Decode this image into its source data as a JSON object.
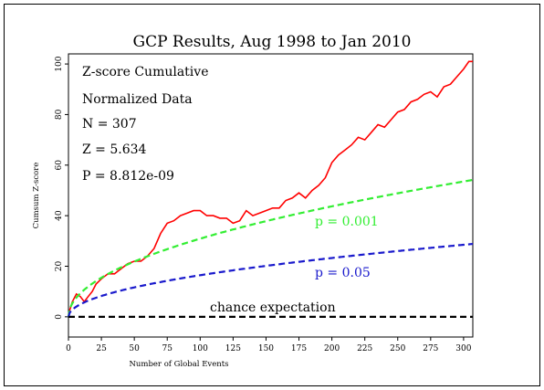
{
  "chart_data": {
    "type": "line",
    "title": "GCP Results, Aug 1998 to Jan 2010",
    "xlabel": "Number of Global Events",
    "ylabel": "Cumsum Z-score",
    "xlim": [
      0,
      307
    ],
    "ylim": [
      -8,
      104
    ],
    "xticks": [
      0,
      25,
      50,
      75,
      100,
      125,
      150,
      175,
      200,
      225,
      250,
      275,
      300
    ],
    "yticks": [
      0,
      20,
      40,
      60,
      80,
      100
    ],
    "grid": false,
    "annotations": [
      "Z-score Cumulative",
      "Normalized Data",
      "N = 307",
      "Z = 5.634",
      "P = 8.812e-09"
    ],
    "series": [
      {
        "name": "",
        "color": "#ff0000",
        "style": "solid",
        "x": [
          0,
          3,
          6,
          9,
          12,
          15,
          18,
          21,
          25,
          30,
          35,
          40,
          45,
          50,
          55,
          60,
          65,
          70,
          75,
          80,
          85,
          90,
          95,
          100,
          105,
          110,
          115,
          120,
          125,
          130,
          135,
          140,
          145,
          150,
          155,
          160,
          165,
          170,
          175,
          180,
          185,
          190,
          195,
          200,
          205,
          210,
          215,
          220,
          225,
          230,
          235,
          240,
          245,
          250,
          255,
          260,
          265,
          270,
          275,
          280,
          285,
          290,
          295,
          300,
          304,
          307
        ],
        "y": [
          1,
          6,
          9,
          8,
          6,
          8,
          10,
          13,
          15,
          17,
          17,
          19,
          21,
          22,
          22,
          24,
          27,
          33,
          37,
          38,
          40,
          41,
          42,
          42,
          40,
          40,
          39,
          39,
          37,
          38,
          42,
          40,
          41,
          42,
          43,
          43,
          46,
          47,
          49,
          47,
          50,
          52,
          55,
          61,
          64,
          66,
          68,
          71,
          70,
          73,
          76,
          75,
          78,
          81,
          82,
          85,
          86,
          88,
          89,
          87,
          91,
          92,
          95,
          98,
          101,
          101
        ]
      },
      {
        "name": "p = 0.001",
        "color": "#33ee33",
        "style": "dashed",
        "curve": "3.09*sqrt(x)"
      },
      {
        "name": "p = 0.05",
        "color": "#1a1acc",
        "style": "dashed",
        "curve": "1.645*sqrt(x)"
      },
      {
        "name": "chance expectation",
        "color": "#000000",
        "style": "dashed",
        "curve": "0"
      }
    ]
  }
}
